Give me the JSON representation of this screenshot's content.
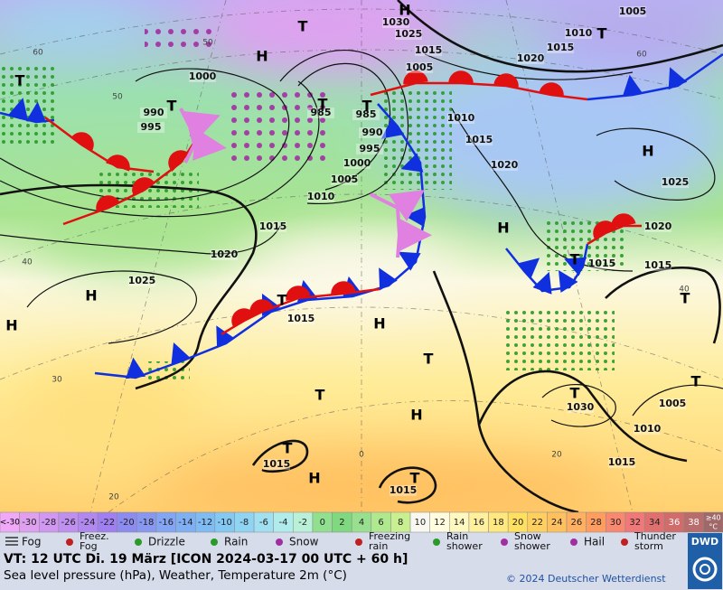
{
  "map": {
    "isobar_labels": [
      "1005",
      "1030",
      "1025",
      "1015",
      "1015",
      "1010",
      "1020",
      "1005",
      "1000",
      "990",
      "995",
      "985",
      "985",
      "990",
      "995",
      "1000",
      "1005",
      "1010",
      "1010",
      "1015",
      "1020",
      "1025",
      "1020",
      "1015",
      "1020",
      "1025",
      "1015",
      "1015",
      "1015",
      "1030",
      "1005",
      "1010",
      "1015",
      "1015",
      "1015"
    ],
    "pressure_centers": [
      "H",
      "T",
      "H",
      "T",
      "T",
      "T",
      "T",
      "H",
      "H",
      "T",
      "H",
      "H",
      "T",
      "H",
      "T",
      "T",
      "H",
      "T",
      "T",
      "H",
      "T",
      "T",
      "T",
      "T"
    ],
    "graticule_labels": [
      "60",
      "50",
      "40",
      "30",
      "20",
      "0",
      "60",
      "50",
      "40",
      "20"
    ]
  },
  "legend": {
    "temperature_scale": {
      "low_label": "<-30",
      "low_color": "#f0a8f8",
      "values": [
        -30,
        -28,
        -26,
        -24,
        -22,
        -20,
        -18,
        -16,
        -14,
        -12,
        -10,
        -8,
        -6,
        -4,
        -2,
        0,
        2,
        4,
        6,
        8,
        10,
        12,
        14,
        16,
        18,
        20,
        22,
        24,
        26,
        28,
        30,
        32,
        34,
        36,
        38
      ],
      "colors": [
        "#e0a0f0",
        "#d098f0",
        "#c090f0",
        "#b088f0",
        "#a080f0",
        "#8c8cf0",
        "#8898f0",
        "#84a4f4",
        "#80b0f4",
        "#80bcf4",
        "#84c8f4",
        "#90d4f4",
        "#a0e0f0",
        "#b0ecec",
        "#b8f0d8",
        "#90e090",
        "#80d880",
        "#98e090",
        "#b0e890",
        "#c8f090",
        "#f8f8f0",
        "#fffce0",
        "#fff8c0",
        "#fff0a0",
        "#ffe880",
        "#ffe060",
        "#ffd060",
        "#ffc060",
        "#ffb060",
        "#ff9c60",
        "#f88870",
        "#f07878",
        "#e07070",
        "#d06c6c",
        "#b86c6c"
      ],
      "high_label": "≥40",
      "high_unit": "°C",
      "high_color": "#a06868"
    },
    "weather": [
      [
        "Fog"
      ],
      [
        "Freez.",
        "Fog"
      ],
      [
        "Drizzle"
      ],
      [
        "Rain"
      ],
      [
        "Snow"
      ],
      [
        "Freezing",
        "rain"
      ],
      [
        "Rain",
        "shower"
      ],
      [
        "Snow",
        "shower"
      ],
      [
        "Hail"
      ],
      [
        "Thunder",
        "storm"
      ]
    ]
  },
  "footer": {
    "valid_time": "VT: 12 UTC Di.  19 März [ICON 2024-03-17  00 UTC + 60 h]",
    "description": "Sea level pressure (hPa), Weather, Temperature 2m (°C)",
    "copyright": "© 2024 Deutscher Wetterdienst",
    "logo": "DWD"
  }
}
